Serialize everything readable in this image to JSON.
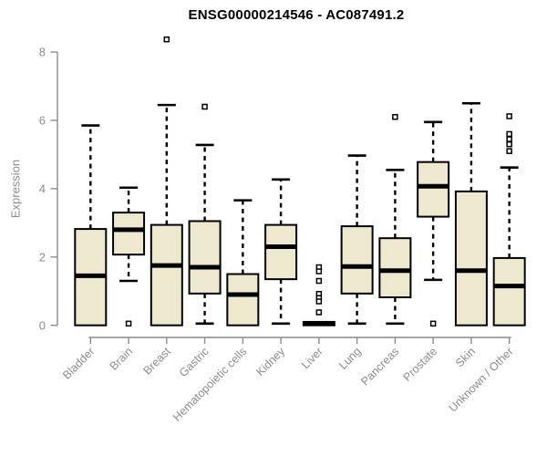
{
  "title": "ENSG00000214546 - AC087491.2",
  "colors": {
    "box_fill": "#EDE8CE",
    "box_border": "#000000",
    "median": "#000000",
    "axis": "#8C8C8C",
    "labels": "#8C8C8C",
    "title": "#000000",
    "background": "#FFFFFF"
  },
  "chart_data": {
    "type": "boxplot",
    "title": "ENSG00000214546 - AC087491.2",
    "xlabel": "",
    "ylabel": "Expression",
    "ylim": [
      0,
      8
    ],
    "yticks": [
      0,
      2,
      4,
      6,
      8
    ],
    "grid": false,
    "legend": "none",
    "categories": [
      "Bladder",
      "Brain",
      "Breast",
      "Gastric",
      "Hematopoietic cells",
      "Kidney",
      "Liver",
      "Lung",
      "Pancreas",
      "Prostate",
      "Skin",
      "Unknown / Other"
    ],
    "boxes": [
      {
        "category": "Bladder",
        "whisker_low": null,
        "q1": 0,
        "median": 1.45,
        "q3": 2.82,
        "whisker_high": 5.85,
        "outliers": []
      },
      {
        "category": "Brain",
        "whisker_low": 1.3,
        "q1": 2.07,
        "median": 2.8,
        "q3": 3.3,
        "whisker_high": 4.03,
        "outliers": [
          0.05
        ]
      },
      {
        "category": "Breast",
        "whisker_low": null,
        "q1": 0,
        "median": 1.75,
        "q3": 2.94,
        "whisker_high": 6.45,
        "outliers": [
          8.37
        ]
      },
      {
        "category": "Gastric",
        "whisker_low": 0.05,
        "q1": 0.93,
        "median": 1.7,
        "q3": 3.05,
        "whisker_high": 5.28,
        "outliers": [
          6.4
        ]
      },
      {
        "category": "Hematopoietic cells",
        "whisker_low": null,
        "q1": 0,
        "median": 0.9,
        "q3": 1.5,
        "whisker_high": 3.66,
        "outliers": []
      },
      {
        "category": "Kidney",
        "whisker_low": 0.05,
        "q1": 1.35,
        "median": 2.3,
        "q3": 2.94,
        "whisker_high": 4.27,
        "outliers": []
      },
      {
        "category": "Liver",
        "whisker_low": null,
        "q1": 0,
        "median": 0.05,
        "q3": 0.1,
        "whisker_high": null,
        "outliers": [
          1.7,
          1.58,
          1.3,
          0.92,
          0.8,
          0.7,
          0.38
        ]
      },
      {
        "category": "Lung",
        "whisker_low": 0.05,
        "q1": 0.93,
        "median": 1.72,
        "q3": 2.9,
        "whisker_high": 4.97,
        "outliers": []
      },
      {
        "category": "Pancreas",
        "whisker_low": 0.05,
        "q1": 0.82,
        "median": 1.6,
        "q3": 2.55,
        "whisker_high": 4.55,
        "outliers": [
          6.1
        ]
      },
      {
        "category": "Prostate",
        "whisker_low": 1.33,
        "q1": 3.18,
        "median": 4.07,
        "q3": 4.78,
        "whisker_high": 5.95,
        "outliers": [
          0.05
        ]
      },
      {
        "category": "Skin",
        "whisker_low": null,
        "q1": 0,
        "median": 1.6,
        "q3": 3.92,
        "whisker_high": 6.5,
        "outliers": []
      },
      {
        "category": "Unknown / Other",
        "whisker_low": null,
        "q1": 0,
        "median": 1.15,
        "q3": 1.97,
        "whisker_high": 4.62,
        "outliers": [
          6.12,
          5.6,
          5.45,
          5.3,
          5.1
        ]
      }
    ]
  }
}
